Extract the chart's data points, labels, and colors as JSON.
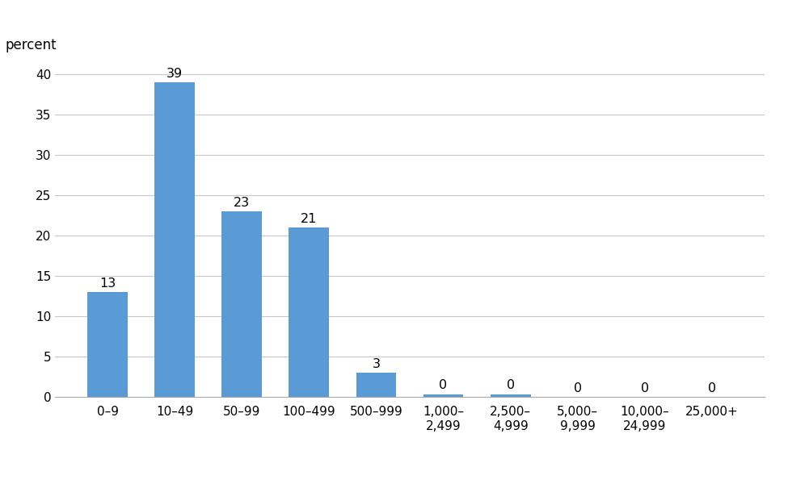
{
  "categories": [
    "0–9",
    "10–49",
    "50–99",
    "100–499",
    "500–999",
    "1,000–\n2,499",
    "2,500–\n4,999",
    "5,000–\n9,999",
    "10,000–\n24,999",
    "25,000+"
  ],
  "values": [
    13,
    39,
    23,
    21,
    3,
    0.3,
    0.3,
    0,
    0,
    0
  ],
  "bar_labels": [
    "13",
    "39",
    "23",
    "21",
    "3",
    "0",
    "0",
    "0",
    "0",
    "0"
  ],
  "bar_color": "#5B9BD5",
  "percent_label": "percent",
  "ylim": [
    0,
    42
  ],
  "yticks": [
    0,
    5,
    10,
    15,
    20,
    25,
    30,
    35,
    40
  ],
  "background_color": "#ffffff",
  "grid_color": "#c8c8c8",
  "label_fontsize": 11.5,
  "tick_fontsize": 11,
  "percent_fontsize": 12
}
